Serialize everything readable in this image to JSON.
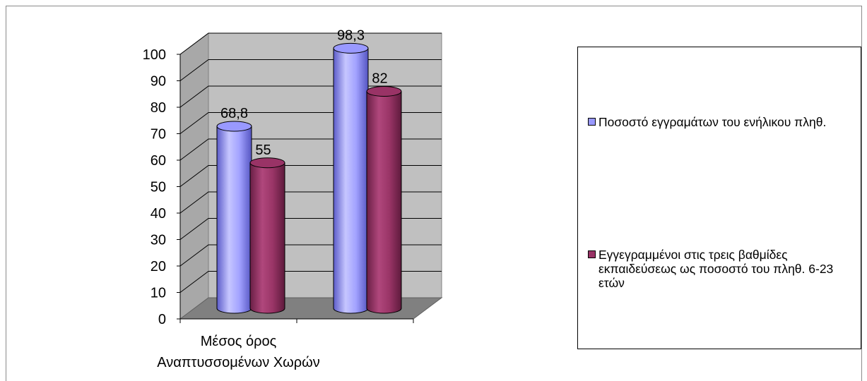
{
  "chart_data": {
    "type": "bar",
    "style": "3d-cylinder",
    "categories": [
      "Μέσος όρος Αναπτυσσομένων Χωρών",
      ""
    ],
    "category_label_lines": [
      [
        "Μέσος όρος",
        "Αναπτυσσομένων Χωρών"
      ],
      []
    ],
    "series": [
      {
        "name": "Ποσοστό εγγραμάτων του ενήλικου πληθ.",
        "values": [
          68.8,
          98.3
        ],
        "color": "#9999ff"
      },
      {
        "name": "Εγγεγραμμένοι στις τρεις βαθμίδες εκπαιδεύσεως ως ποσοστό του πληθ. 6-23 ετών",
        "values": [
          55,
          82
        ],
        "color": "#993366"
      }
    ],
    "data_labels": [
      [
        "68,8",
        "98,3"
      ],
      [
        "55",
        "82"
      ]
    ],
    "ylim": [
      0,
      100
    ],
    "yticks": [
      "0",
      "10",
      "20",
      "30",
      "40",
      "50",
      "60",
      "70",
      "80",
      "90",
      "100"
    ],
    "grid": true,
    "wall_color": "#c0c0c0",
    "floor_color": "#808080",
    "legend_position": "right"
  },
  "legend": {
    "items": [
      {
        "label": "Ποσοστό εγγραμάτων του ενήλικου πληθ.",
        "color": "#9999ff"
      },
      {
        "label": "Εγγεγραμμένοι στις τρεις βαθμίδες εκπαιδεύσεως ως ποσοστό του πληθ. 6-23 ετών",
        "color": "#993366"
      }
    ]
  }
}
